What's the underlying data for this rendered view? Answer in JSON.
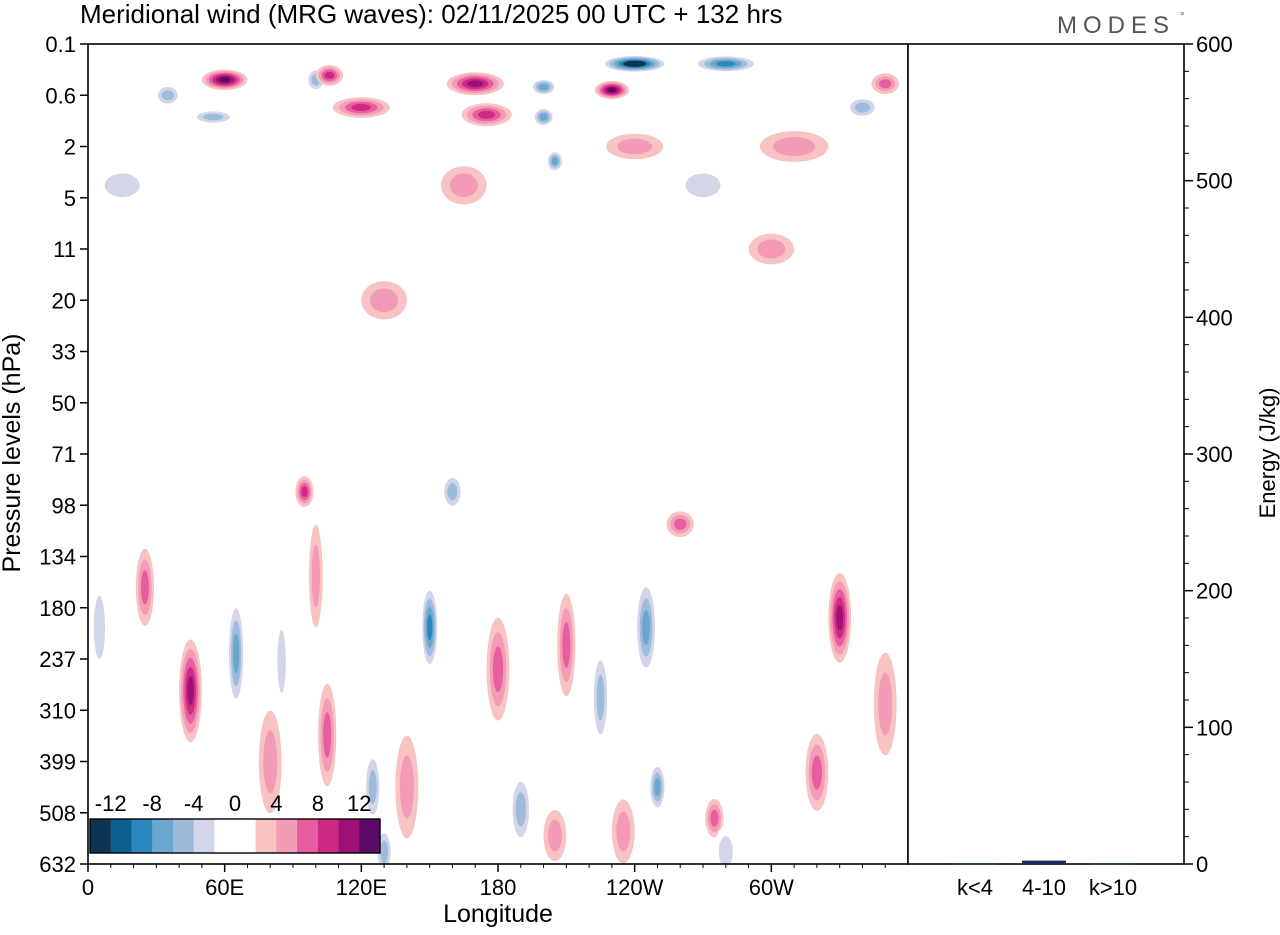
{
  "chart_data": {
    "type": "heatmap",
    "title": "Meridional wind (MRG waves):  02/11/2025  00 UTC  + 132 hrs",
    "brand": "MODES",
    "brand_mark": "°",
    "xlabel": "Longitude",
    "ylabel": "Pressure levels (hPa)",
    "x_ticks": [
      "0",
      "60E",
      "120E",
      "180",
      "120W",
      "60W"
    ],
    "x_tick_lons": [
      0,
      60,
      120,
      180,
      240,
      300
    ],
    "xlim": [
      0,
      360
    ],
    "y_levels": [
      "0.1",
      "0.6",
      "2",
      "5",
      "11",
      "20",
      "33",
      "50",
      "71",
      "98",
      "134",
      "180",
      "237",
      "310",
      "399",
      "508",
      "632"
    ],
    "colorbar": {
      "levels": [
        -12,
        -8,
        -4,
        0,
        4,
        8,
        12
      ],
      "labels": [
        "-12",
        "-8",
        "-4",
        "0",
        "4",
        "8",
        "12"
      ],
      "colors": [
        "#0d3450",
        "#0e5f8f",
        "#2b87bd",
        "#6aa6ce",
        "#9dbcdc",
        "#d3d6e8",
        "#ffffff",
        "#ffffff",
        "#f8c3c3",
        "#f39bb6",
        "#e85d9e",
        "#cd2a85",
        "#9e1075",
        "#5c0a67"
      ]
    },
    "energy_axis": {
      "ylabel": "Energy (J/kg)",
      "ylim": [
        0,
        600
      ],
      "ticks": [
        "0",
        "100",
        "200",
        "300",
        "400",
        "500",
        "600"
      ],
      "tick_values": [
        0,
        100,
        200,
        300,
        400,
        500,
        600
      ]
    },
    "energy_bars": {
      "categories": [
        "k<4",
        "4-10",
        "k>10"
      ],
      "values": [
        0.5,
        2.5,
        0.5
      ],
      "colors": [
        "#1a2a5a",
        "#1a2a5a",
        "#1a2a5a"
      ]
    },
    "features": [
      {
        "lon": 100,
        "level": 0.35,
        "lw": 9,
        "lh": 0.1,
        "v": -7,
        "sign": "neg"
      },
      {
        "lon": 106,
        "level": 0.3,
        "lw": 12,
        "lh": 0.08,
        "v": 9,
        "sign": "pos"
      },
      {
        "lon": 60,
        "level": 0.35,
        "lw": 20,
        "lh": 0.08,
        "v": 12,
        "sign": "pos"
      },
      {
        "lon": 240,
        "level": 0.2,
        "lw": 30,
        "lh": 0.07,
        "v": -14,
        "sign": "neg"
      },
      {
        "lon": 280,
        "level": 0.2,
        "lw": 30,
        "lh": 0.07,
        "v": -11,
        "sign": "neg"
      },
      {
        "lon": 170,
        "level": 0.4,
        "lw": 25,
        "lh": 0.09,
        "v": 11,
        "sign": "pos"
      },
      {
        "lon": 200,
        "level": 0.45,
        "lw": 12,
        "lh": 0.07,
        "v": -8,
        "sign": "neg"
      },
      {
        "lon": 230,
        "level": 0.5,
        "lw": 15,
        "lh": 0.07,
        "v": 12,
        "sign": "pos"
      },
      {
        "lon": 35,
        "level": 0.6,
        "lw": 12,
        "lh": 0.09,
        "v": -6,
        "sign": "neg"
      },
      {
        "lon": 120,
        "level": 0.8,
        "lw": 25,
        "lh": 0.08,
        "v": 9,
        "sign": "pos"
      },
      {
        "lon": 175,
        "level": 0.95,
        "lw": 22,
        "lh": 0.09,
        "v": 8,
        "sign": "pos"
      },
      {
        "lon": 55,
        "level": 1.0,
        "lw": 20,
        "lh": 0.06,
        "v": -6,
        "sign": "neg"
      },
      {
        "lon": 200,
        "level": 1.0,
        "lw": 10,
        "lh": 0.08,
        "v": -9,
        "sign": "neg"
      },
      {
        "lon": 340,
        "level": 0.8,
        "lw": 15,
        "lh": 0.09,
        "v": -7,
        "sign": "neg"
      },
      {
        "lon": 350,
        "level": 0.4,
        "lw": 12,
        "lh": 0.08,
        "v": 6,
        "sign": "pos"
      },
      {
        "lon": 205,
        "level": 2.6,
        "lw": 8,
        "lh": 0.09,
        "v": -8,
        "sign": "neg"
      },
      {
        "lon": 240,
        "level": 2.0,
        "lw": 25,
        "lh": 0.1,
        "v": 5,
        "sign": "pos"
      },
      {
        "lon": 310,
        "level": 2.0,
        "lw": 30,
        "lh": 0.12,
        "v": 4,
        "sign": "pos"
      },
      {
        "lon": 165,
        "level": 4.0,
        "lw": 20,
        "lh": 0.15,
        "v": 4,
        "sign": "pos"
      },
      {
        "lon": 15,
        "level": 4.0,
        "lw": 25,
        "lh": 0.15,
        "v": -4,
        "sign": "neg"
      },
      {
        "lon": 270,
        "level": 4.0,
        "lw": 25,
        "lh": 0.15,
        "v": -4,
        "sign": "neg"
      },
      {
        "lon": 130,
        "level": 20.0,
        "lw": 20,
        "lh": 0.15,
        "v": 4,
        "sign": "pos"
      },
      {
        "lon": 300,
        "level": 11.0,
        "lw": 20,
        "lh": 0.12,
        "v": 4,
        "sign": "pos"
      },
      {
        "lon": 95,
        "level": 90.0,
        "lw": 8,
        "lh": 0.12,
        "v": 9,
        "sign": "pos"
      },
      {
        "lon": 160,
        "level": 90.0,
        "lw": 10,
        "lh": 0.15,
        "v": -6,
        "sign": "neg"
      },
      {
        "lon": 260,
        "level": 110.0,
        "lw": 12,
        "lh": 0.1,
        "v": 6,
        "sign": "pos"
      },
      {
        "lon": 330,
        "level": 190.0,
        "lw": 10,
        "lh": 0.35,
        "v": 10,
        "sign": "pos"
      },
      {
        "lon": 150,
        "level": 200.0,
        "lw": 8,
        "lh": 0.35,
        "v": -10,
        "sign": "neg"
      },
      {
        "lon": 245,
        "level": 200.0,
        "lw": 10,
        "lh": 0.4,
        "v": -8,
        "sign": "neg"
      },
      {
        "lon": 65,
        "level": 230.0,
        "lw": 8,
        "lh": 0.45,
        "v": -8,
        "sign": "neg"
      },
      {
        "lon": 45,
        "level": 280.0,
        "lw": 10,
        "lh": 0.4,
        "v": 11,
        "sign": "pos"
      },
      {
        "lon": 25,
        "level": 160.0,
        "lw": 8,
        "lh": 0.3,
        "v": 6,
        "sign": "pos"
      },
      {
        "lon": 85,
        "level": 240.0,
        "lw": 6,
        "lh": 0.4,
        "v": -4,
        "sign": "neg"
      },
      {
        "lon": 180,
        "level": 250.0,
        "lw": 10,
        "lh": 0.4,
        "v": 6,
        "sign": "pos"
      },
      {
        "lon": 210,
        "level": 220.0,
        "lw": 8,
        "lh": 0.4,
        "v": 7,
        "sign": "pos"
      },
      {
        "lon": 225,
        "level": 290.0,
        "lw": 8,
        "lh": 0.4,
        "v": -6,
        "sign": "neg"
      },
      {
        "lon": 105,
        "level": 350.0,
        "lw": 8,
        "lh": 0.4,
        "v": 6,
        "sign": "pos"
      },
      {
        "lon": 125,
        "level": 450.0,
        "lw": 8,
        "lh": 0.3,
        "v": -6,
        "sign": "neg"
      },
      {
        "lon": 130,
        "level": 600.0,
        "lw": 8,
        "lh": 0.2,
        "v": -6,
        "sign": "neg"
      },
      {
        "lon": 250,
        "level": 450.0,
        "lw": 8,
        "lh": 0.2,
        "v": -8,
        "sign": "neg"
      },
      {
        "lon": 275,
        "level": 520.0,
        "lw": 8,
        "lh": 0.15,
        "v": 7,
        "sign": "pos"
      },
      {
        "lon": 320,
        "level": 420.0,
        "lw": 10,
        "lh": 0.3,
        "v": 6,
        "sign": "pos"
      },
      {
        "lon": 350,
        "level": 300.0,
        "lw": 10,
        "lh": 0.4,
        "v": 5,
        "sign": "pos"
      },
      {
        "lon": 190,
        "level": 500.0,
        "lw": 10,
        "lh": 0.3,
        "v": -6,
        "sign": "neg"
      },
      {
        "lon": 205,
        "level": 560.0,
        "lw": 10,
        "lh": 0.2,
        "v": 5,
        "sign": "pos"
      },
      {
        "lon": 235,
        "level": 550.0,
        "lw": 10,
        "lh": 0.25,
        "v": 4,
        "sign": "pos"
      },
      {
        "lon": 280,
        "level": 600.0,
        "lw": 10,
        "lh": 0.2,
        "v": -4,
        "sign": "neg"
      },
      {
        "lon": 5,
        "level": 200.0,
        "lw": 8,
        "lh": 0.4,
        "v": -5,
        "sign": "neg"
      },
      {
        "lon": 100,
        "level": 150.0,
        "lw": 6,
        "lh": 0.4,
        "v": 4,
        "sign": "pos"
      },
      {
        "lon": 80,
        "level": 400.0,
        "lw": 10,
        "lh": 0.4,
        "v": 4,
        "sign": "pos"
      },
      {
        "lon": 140,
        "level": 450.0,
        "lw": 10,
        "lh": 0.4,
        "v": 4,
        "sign": "pos"
      }
    ]
  }
}
